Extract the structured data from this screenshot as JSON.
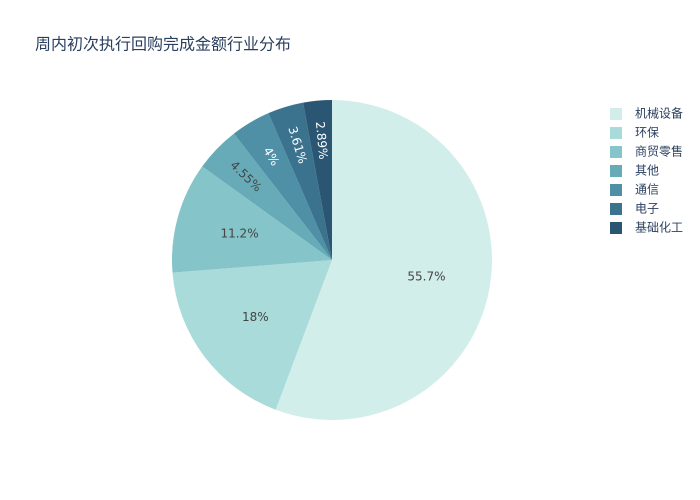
{
  "chart_data": {
    "type": "pie",
    "title": "周内初次执行回购完成金额行业分布",
    "categories": [
      "机械设备",
      "环保",
      "商贸零售",
      "其他",
      "通信",
      "电子",
      "基础化工"
    ],
    "values": [
      55.7,
      18,
      11.2,
      4.55,
      4,
      3.61,
      2.89
    ],
    "value_labels": [
      "55.7%",
      "18%",
      "11.2%",
      "4.55%",
      "4%",
      "3.61%",
      "2.89%"
    ],
    "colors": [
      "#d2eeea",
      "#a8dbd9",
      "#85c4c9",
      "#68abb8",
      "#4f90a6",
      "#3b738f",
      "#2a5674"
    ],
    "legend": "top-right"
  }
}
